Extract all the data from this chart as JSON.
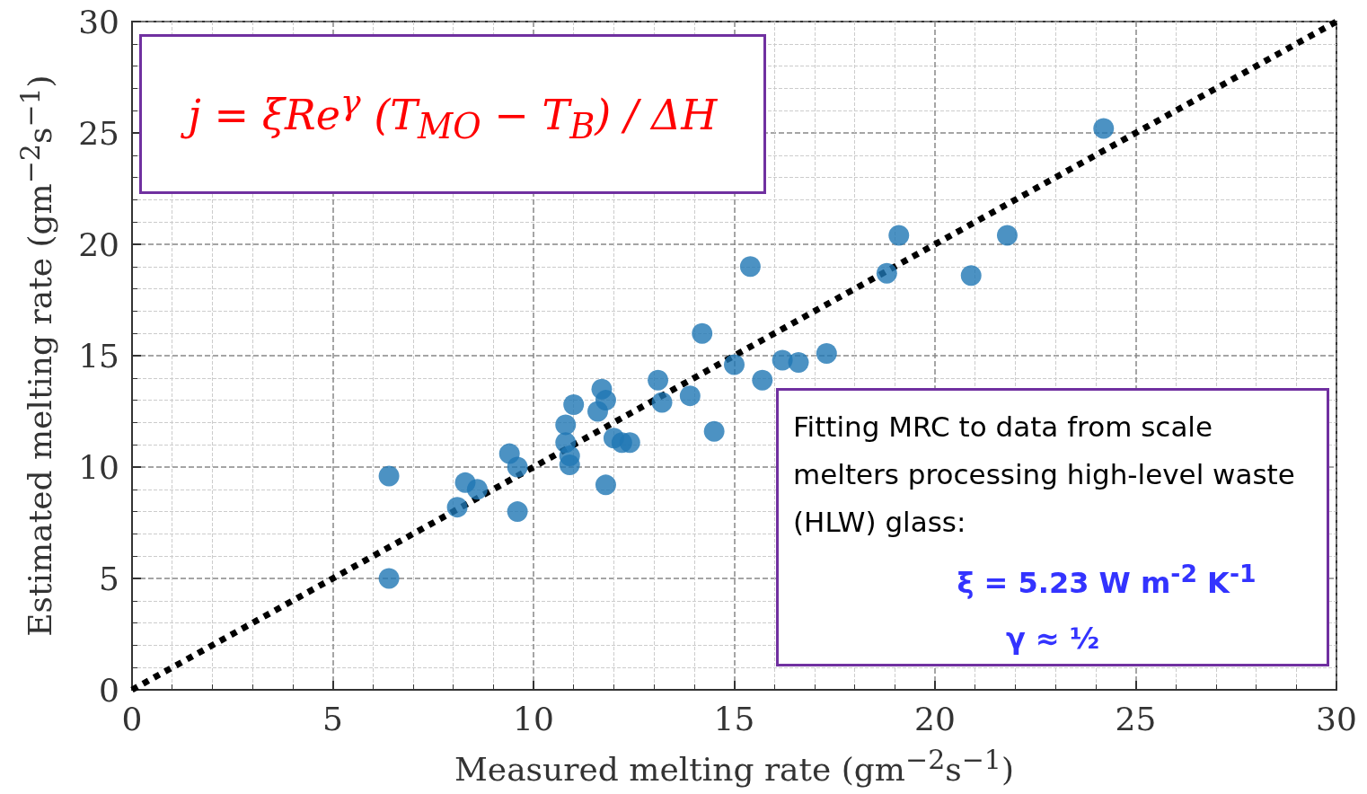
{
  "chart_data": {
    "type": "scatter",
    "xlabel": "Measured melting rate (gm$^{−2}$s$^{−1}$)",
    "ylabel": "Estimated melting rate (gm$^{−2}$s$^{−1}$)",
    "xlim": [
      0,
      30
    ],
    "ylim": [
      0,
      30
    ],
    "xticks": [
      0,
      5,
      10,
      15,
      20,
      25,
      30
    ],
    "yticks": [
      0,
      5,
      10,
      15,
      20,
      25,
      30
    ],
    "grid": true,
    "marker": "circle",
    "annotations": [
      "j = ξRe$^{γ}$ (T$_{MO}$ − T$_{B}$) / ΔH",
      "Fitting MRC to data from scale melters processing high-level waste (HLW) glass:",
      "ξ = 5.23 W m$^{-2}$ K$^{-1}$",
      "γ ≈ ½"
    ],
    "series": [
      {
        "color": "#1f77b4",
        "x": [
          6.4,
          6.4,
          8.1,
          8.3,
          8.6,
          9.4,
          9.6,
          9.6,
          10.8,
          10.8,
          10.9,
          10.9,
          11.0,
          11.6,
          11.7,
          11.8,
          11.8,
          12.0,
          12.2,
          12.4,
          13.1,
          13.2,
          13.9,
          14.2,
          14.5,
          15.0,
          15.4,
          15.7,
          16.2,
          16.6,
          17.3,
          18.8,
          19.1,
          20.9,
          21.8,
          24.2
        ],
        "values": [
          5.0,
          9.6,
          8.2,
          9.3,
          9.0,
          10.6,
          10.0,
          8.0,
          11.9,
          11.1,
          10.5,
          10.1,
          12.8,
          12.5,
          13.5,
          13.0,
          9.2,
          11.3,
          11.1,
          11.1,
          13.9,
          12.9,
          13.2,
          16.0,
          11.6,
          14.6,
          19.0,
          13.9,
          14.8,
          14.7,
          15.1,
          18.7,
          20.4,
          18.6,
          20.4,
          25.2
        ]
      },
      {
        "type": "line",
        "color": "#000000",
        "line_style": "dotted",
        "marker": "none",
        "x": [
          0,
          30
        ],
        "values": [
          0,
          30
        ]
      }
    ]
  }
}
